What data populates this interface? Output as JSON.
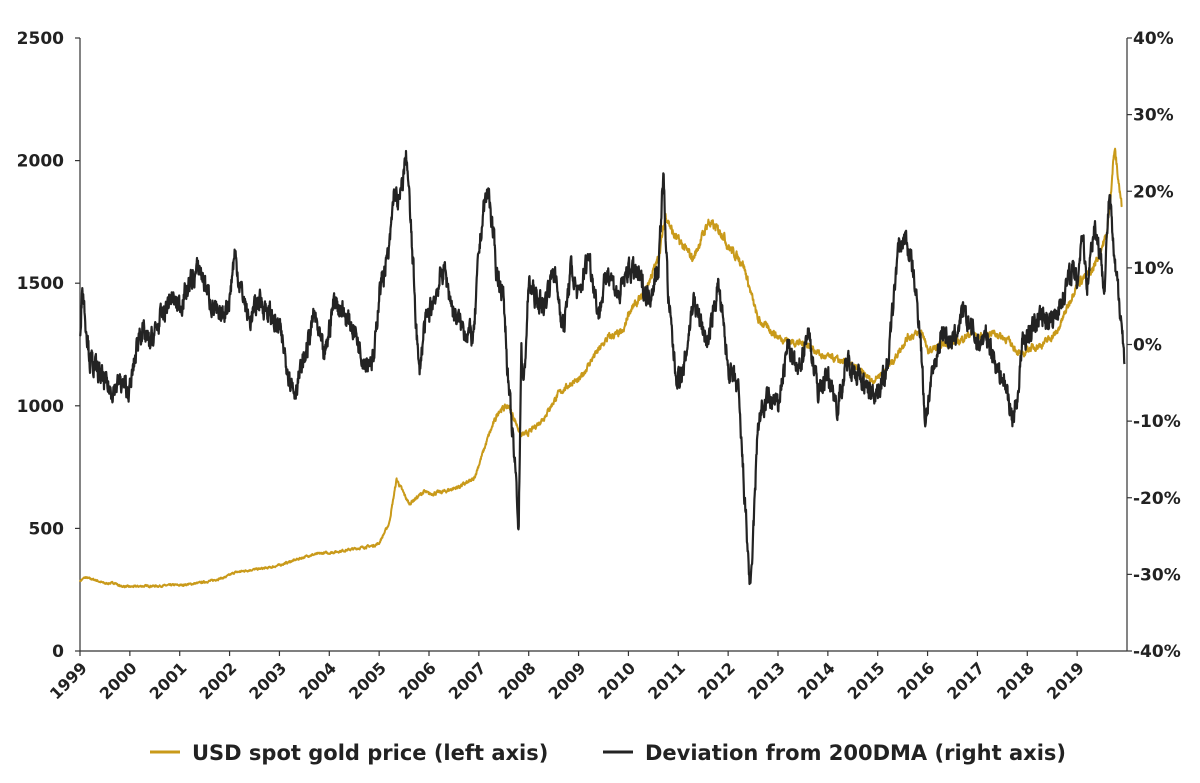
{
  "chart_data": {
    "type": "line",
    "title": "",
    "xlabel": "",
    "ylabel_left": "",
    "ylabel_right": "",
    "x_range": [
      1999,
      2020
    ],
    "x_ticks": [
      "1999",
      "2000",
      "2001",
      "2002",
      "2003",
      "2004",
      "2005",
      "2006",
      "2007",
      "2008",
      "2009",
      "2010",
      "2011",
      "2012",
      "2013",
      "2014",
      "2015",
      "2016",
      "2017",
      "2018",
      "2019"
    ],
    "y_left": {
      "ylim": [
        0,
        2500
      ],
      "ticks": [
        "0",
        "500",
        "1000",
        "1500",
        "2000",
        "2500"
      ]
    },
    "y_right": {
      "ylim": [
        -40,
        40
      ],
      "ticks": [
        "-40%",
        "-30%",
        "-20%",
        "-10%",
        "0%",
        "10%",
        "20%",
        "30%",
        "40%"
      ]
    },
    "grid": false,
    "legend_position": "bottom",
    "series": [
      {
        "name": "USD spot gold price (left axis)",
        "axis": "left",
        "color": "#C99A1A",
        "x": [
          1999.0,
          1999.1,
          1999.3,
          1999.5,
          1999.7,
          1999.8,
          2000.0,
          2000.3,
          2000.6,
          2000.9,
          2001.0,
          2001.3,
          2001.6,
          2001.9,
          2002.0,
          2002.1,
          2002.4,
          2002.8,
          2003.0,
          2003.3,
          2003.6,
          2003.9,
          2004.0,
          2004.3,
          2004.6,
          2004.9,
          2005.0,
          2005.2,
          2005.35,
          2005.6,
          2005.9,
          2006.0,
          2006.3,
          2006.6,
          2006.9,
          2007.0,
          2007.2,
          2007.4,
          2007.6,
          2007.85,
          2008.0,
          2008.3,
          2008.6,
          2008.9,
          2009.0,
          2009.3,
          2009.6,
          2009.9,
          2010.0,
          2010.3,
          2010.6,
          2010.75,
          2010.9,
          2011.1,
          2011.3,
          2011.6,
          2011.9,
          2012.0,
          2012.3,
          2012.6,
          2012.9,
          2013.0,
          2013.3,
          2013.6,
          2013.9,
          2014.0,
          2014.3,
          2014.6,
          2014.9,
          2015.0,
          2015.3,
          2015.6,
          2015.9,
          2016.0,
          2016.3,
          2016.6,
          2016.9,
          2017.0,
          2017.3,
          2017.6,
          2017.9,
          2018.0,
          2018.3,
          2018.6,
          2018.9,
          2019.0,
          2019.3,
          2019.6,
          2019.75,
          2019.9
        ],
        "y": [
          285,
          300,
          290,
          275,
          278,
          265,
          262,
          265,
          265,
          270,
          268,
          275,
          285,
          300,
          310,
          320,
          330,
          340,
          350,
          370,
          390,
          400,
          400,
          410,
          420,
          430,
          440,
          520,
          700,
          600,
          650,
          640,
          650,
          670,
          700,
          760,
          880,
          980,
          1000,
          880,
          890,
          950,
          1050,
          1100,
          1100,
          1200,
          1280,
          1300,
          1380,
          1450,
          1600,
          1780,
          1700,
          1650,
          1600,
          1750,
          1700,
          1650,
          1580,
          1350,
          1300,
          1280,
          1260,
          1250,
          1200,
          1200,
          1180,
          1150,
          1100,
          1120,
          1180,
          1280,
          1300,
          1220,
          1250,
          1260,
          1300,
          1280,
          1300,
          1270,
          1200,
          1230,
          1250,
          1300,
          1450,
          1500,
          1550,
          1700,
          2050,
          1800
        ]
      },
      {
        "name": "Deviation from 200DMA (right axis)",
        "axis": "right",
        "color": "#232323",
        "x": [
          1999.0,
          1999.05,
          1999.1,
          1999.2,
          1999.4,
          1999.6,
          1999.8,
          2000.0,
          2000.2,
          2000.4,
          2000.6,
          2000.8,
          2001.0,
          2001.2,
          2001.4,
          2001.6,
          2001.8,
          2002.0,
          2002.1,
          2002.2,
          2002.4,
          2002.6,
          2002.8,
          2003.0,
          2003.2,
          2003.3,
          2003.5,
          2003.7,
          2003.9,
          2004.1,
          2004.3,
          2004.5,
          2004.7,
          2004.9,
          2005.0,
          2005.2,
          2005.3,
          2005.4,
          2005.55,
          2005.7,
          2005.8,
          2005.9,
          2006.1,
          2006.3,
          2006.5,
          2006.7,
          2006.9,
          2007.0,
          2007.1,
          2007.2,
          2007.35,
          2007.5,
          2007.6,
          2007.75,
          2007.8,
          2007.85,
          2007.9,
          2008.0,
          2008.15,
          2008.3,
          2008.5,
          2008.7,
          2008.85,
          2009.0,
          2009.2,
          2009.4,
          2009.6,
          2009.8,
          2010.0,
          2010.2,
          2010.4,
          2010.6,
          2010.7,
          2010.8,
          2010.95,
          2011.1,
          2011.3,
          2011.6,
          2011.8,
          2012.0,
          2012.2,
          2012.35,
          2012.45,
          2012.6,
          2012.8,
          2013.0,
          2013.2,
          2013.4,
          2013.6,
          2013.8,
          2014.0,
          2014.2,
          2014.4,
          2014.6,
          2014.8,
          2015.0,
          2015.2,
          2015.4,
          2015.55,
          2015.7,
          2015.85,
          2015.95,
          2016.1,
          2016.3,
          2016.5,
          2016.7,
          2016.9,
          2017.0,
          2017.2,
          2017.4,
          2017.6,
          2017.7,
          2017.8,
          2017.9,
          2018.1,
          2018.3,
          2018.5,
          2018.7,
          2018.9,
          2019.0,
          2019.1,
          2019.2,
          2019.35,
          2019.45,
          2019.55,
          2019.65,
          2019.75,
          2019.85,
          2019.95
        ],
        "y": [
          2,
          8,
          4,
          -2,
          -4,
          -6,
          -5,
          -6,
          2,
          0,
          3,
          6,
          5,
          8,
          10,
          6,
          3,
          6,
          12,
          8,
          3,
          6,
          4,
          2,
          -4,
          -6,
          -2,
          4,
          -2,
          6,
          4,
          2,
          -2,
          -2,
          7,
          12,
          20,
          18,
          25,
          8,
          -4,
          2,
          6,
          10,
          4,
          2,
          1,
          12,
          18,
          20,
          10,
          6,
          -6,
          -18,
          -24,
          0,
          -6,
          8,
          6,
          5,
          10,
          2,
          10,
          6,
          12,
          4,
          10,
          6,
          10,
          9,
          6,
          10,
          22,
          6,
          -4,
          -4,
          6,
          0,
          8,
          -3,
          -6,
          -22,
          -33,
          -10,
          -7,
          -8,
          0,
          -4,
          2,
          -6,
          -4,
          -8,
          -2,
          -4,
          -6,
          -6,
          -3,
          12,
          14,
          10,
          2,
          -10,
          -4,
          2,
          0,
          4,
          2,
          0,
          1,
          -3,
          -6,
          -10,
          -7,
          0,
          2,
          4,
          3,
          6,
          10,
          8,
          15,
          8,
          16,
          12,
          8,
          20,
          10,
          6,
          -2
        ]
      }
    ]
  }
}
